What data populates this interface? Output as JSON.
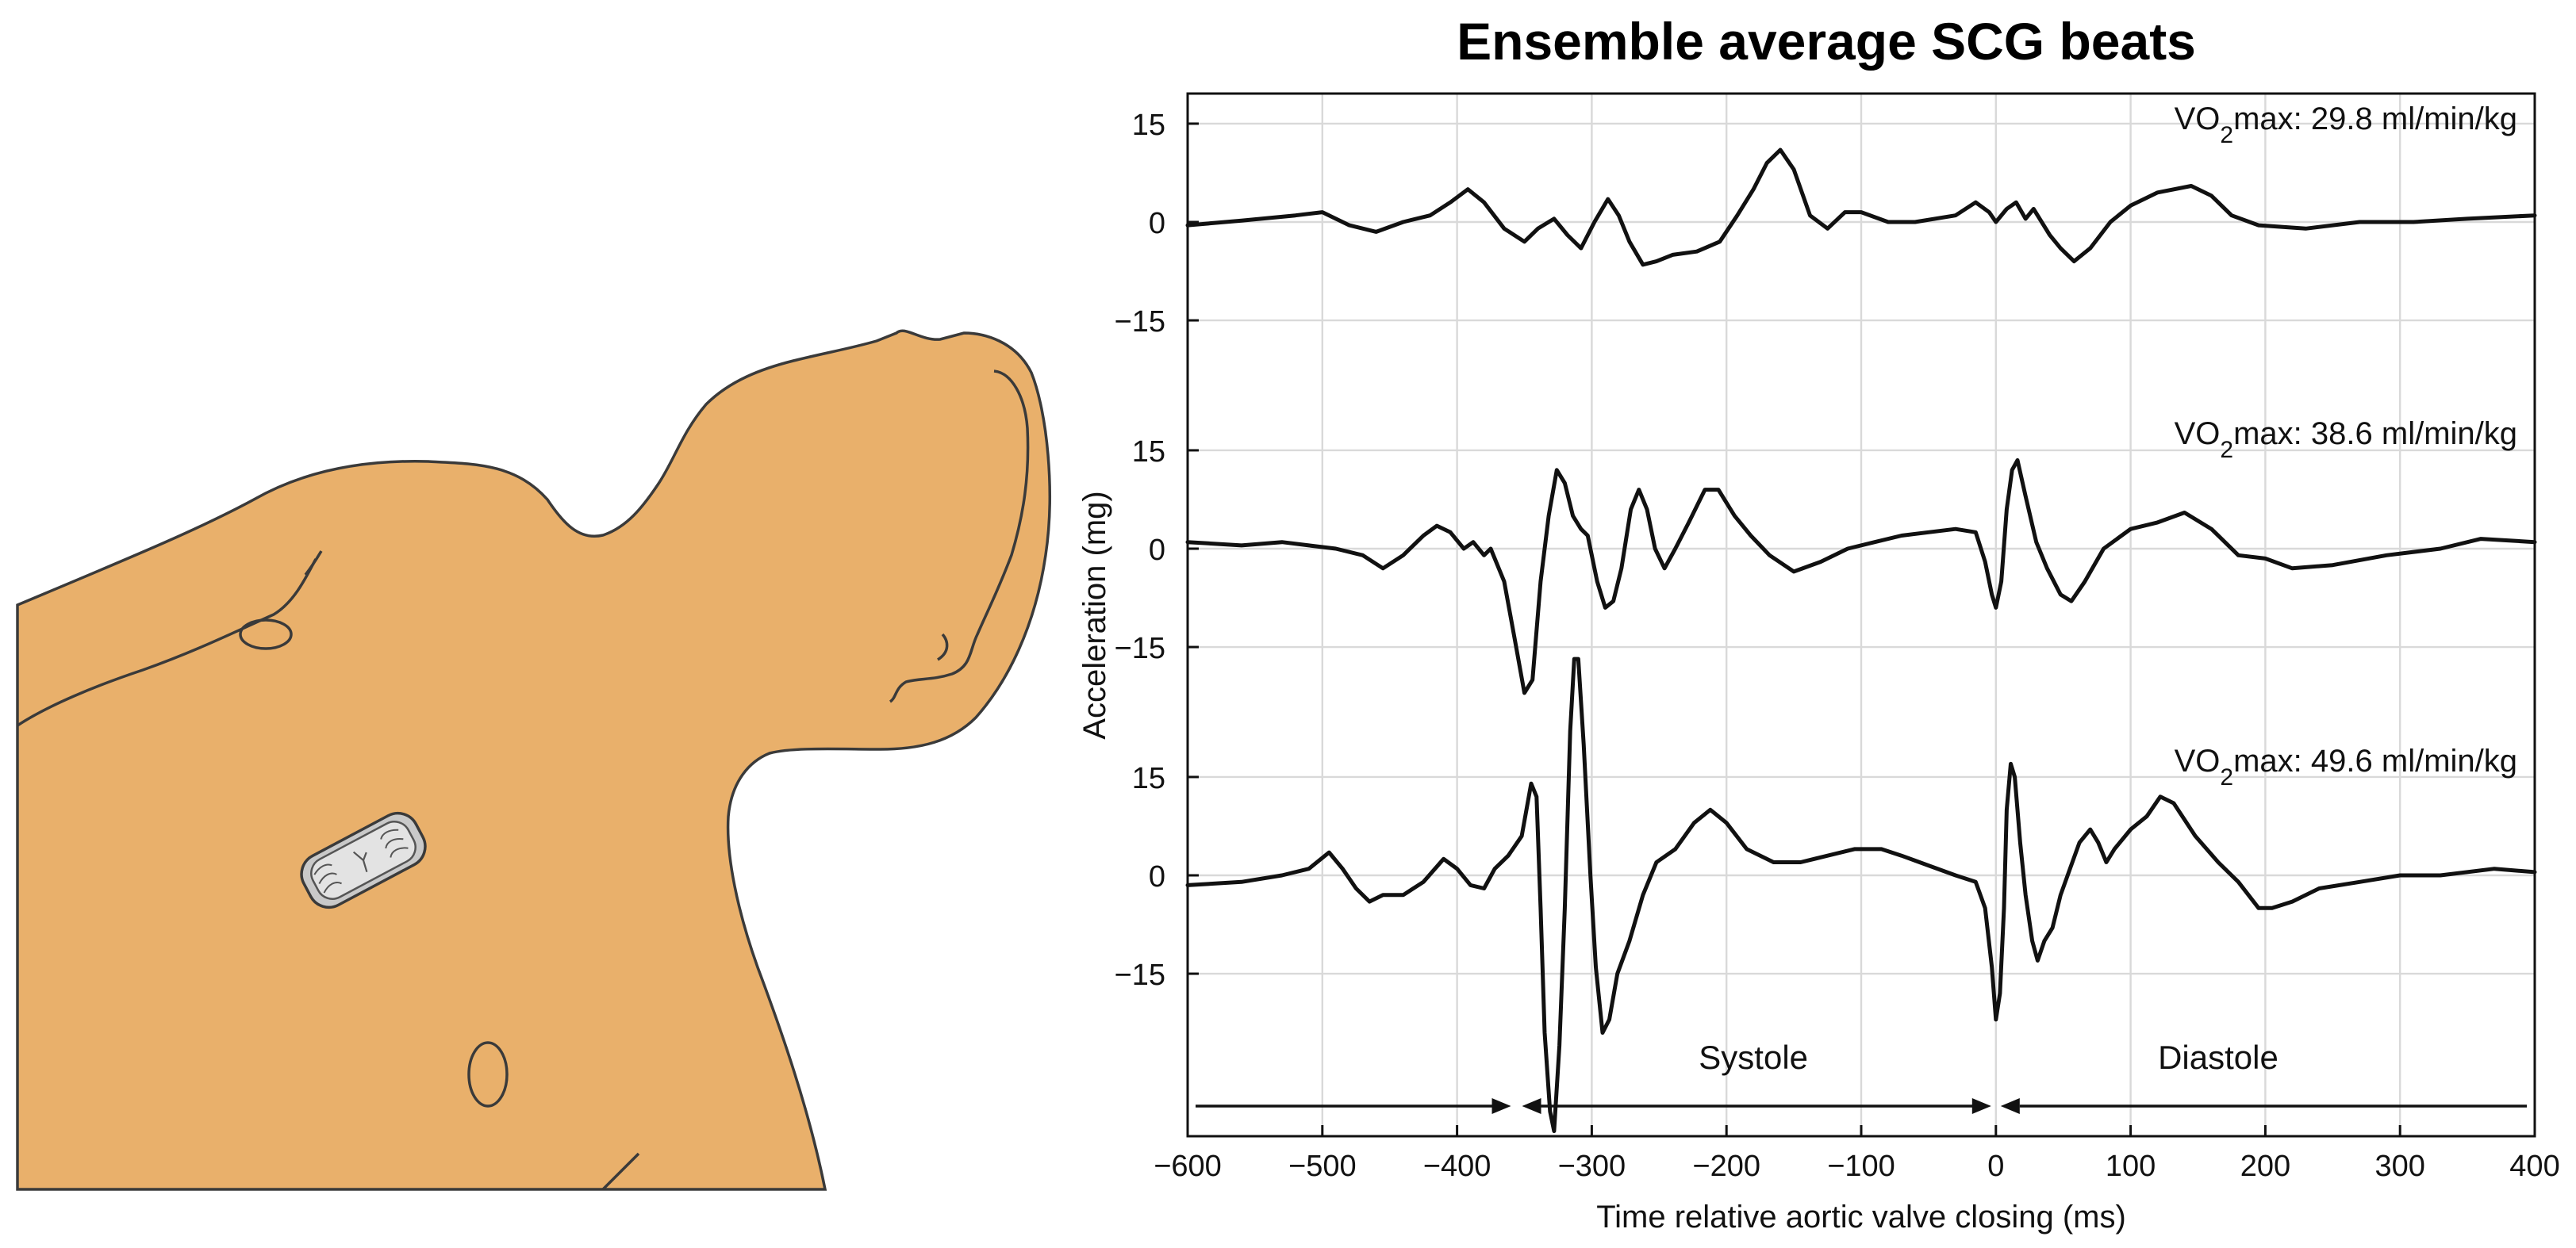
{
  "chart_data": {
    "type": "line",
    "title": "Ensemble average SCG beats",
    "xlabel": "Time relative aortic valve closing (ms)",
    "ylabel": "Acceleration (mg)",
    "xlim": [
      -600,
      400
    ],
    "x_ticks": [
      -600,
      -500,
      -400,
      -300,
      -200,
      -100,
      0,
      100,
      200,
      300,
      400
    ],
    "x_tick_labels": [
      "−600",
      "−500",
      "−400",
      "−300",
      "−200",
      "−100",
      "0",
      "100",
      "200",
      "300",
      "400"
    ],
    "y_tick_labels": [
      "15",
      "0",
      "−15"
    ],
    "grid": true,
    "panels": [
      {
        "annotation": {
          "prefix": "VO",
          "sub": "2",
          "suffix": "max: 29.8 ml/min/kg"
        },
        "ylim": [
          -20,
          20
        ],
        "y_ticks": [
          15,
          0,
          -15
        ],
        "points": [
          [
            -600,
            -0.5
          ],
          [
            -560,
            0.2
          ],
          [
            -520,
            1
          ],
          [
            -500,
            1.5
          ],
          [
            -480,
            -0.5
          ],
          [
            -460,
            -1.5
          ],
          [
            -440,
            0
          ],
          [
            -420,
            1
          ],
          [
            -405,
            3
          ],
          [
            -392,
            5
          ],
          [
            -380,
            3
          ],
          [
            -365,
            -1
          ],
          [
            -350,
            -3
          ],
          [
            -340,
            -1
          ],
          [
            -328,
            0.5
          ],
          [
            -318,
            -2
          ],
          [
            -308,
            -4
          ],
          [
            -298,
            0
          ],
          [
            -288,
            3.5
          ],
          [
            -280,
            1
          ],
          [
            -272,
            -3
          ],
          [
            -262,
            -6.5
          ],
          [
            -252,
            -6
          ],
          [
            -240,
            -5
          ],
          [
            -222,
            -4.5
          ],
          [
            -205,
            -3
          ],
          [
            -192,
            1
          ],
          [
            -180,
            5
          ],
          [
            -170,
            9
          ],
          [
            -160,
            11
          ],
          [
            -150,
            8
          ],
          [
            -138,
            1
          ],
          [
            -125,
            -1
          ],
          [
            -112,
            1.5
          ],
          [
            -100,
            1.5
          ],
          [
            -80,
            0
          ],
          [
            -60,
            0
          ],
          [
            -30,
            1
          ],
          [
            -15,
            3
          ],
          [
            -5,
            1.5
          ],
          [
            0,
            0
          ],
          [
            8,
            2
          ],
          [
            15,
            3
          ],
          [
            22,
            0.5
          ],
          [
            28,
            2
          ],
          [
            34,
            0
          ],
          [
            40,
            -2
          ],
          [
            48,
            -4
          ],
          [
            58,
            -6
          ],
          [
            70,
            -4
          ],
          [
            85,
            0
          ],
          [
            100,
            2.5
          ],
          [
            120,
            4.5
          ],
          [
            145,
            5.5
          ],
          [
            160,
            4
          ],
          [
            175,
            1
          ],
          [
            195,
            -0.5
          ],
          [
            230,
            -1
          ],
          [
            270,
            0
          ],
          [
            310,
            0
          ],
          [
            350,
            0.5
          ],
          [
            400,
            1
          ]
        ]
      },
      {
        "annotation": {
          "prefix": "VO",
          "sub": "2",
          "suffix": "max: 38.6 ml/min/kg"
        },
        "ylim": [
          -25,
          20
        ],
        "y_ticks": [
          15,
          0,
          -15
        ],
        "points": [
          [
            -600,
            1
          ],
          [
            -560,
            0.5
          ],
          [
            -530,
            1
          ],
          [
            -510,
            0.5
          ],
          [
            -490,
            0
          ],
          [
            -470,
            -1
          ],
          [
            -455,
            -3
          ],
          [
            -440,
            -1
          ],
          [
            -425,
            2
          ],
          [
            -415,
            3.5
          ],
          [
            -405,
            2.5
          ],
          [
            -395,
            0
          ],
          [
            -388,
            1
          ],
          [
            -380,
            -1
          ],
          [
            -375,
            0
          ],
          [
            -365,
            -5
          ],
          [
            -357,
            -14
          ],
          [
            -350,
            -22
          ],
          [
            -344,
            -20
          ],
          [
            -338,
            -5
          ],
          [
            -332,
            5
          ],
          [
            -326,
            12
          ],
          [
            -320,
            10
          ],
          [
            -314,
            5
          ],
          [
            -308,
            3
          ],
          [
            -303,
            2
          ],
          [
            -296,
            -5
          ],
          [
            -290,
            -9
          ],
          [
            -284,
            -8
          ],
          [
            -278,
            -3
          ],
          [
            -271,
            6
          ],
          [
            -265,
            9
          ],
          [
            -259,
            6
          ],
          [
            -253,
            0
          ],
          [
            -246,
            -3
          ],
          [
            -238,
            0
          ],
          [
            -228,
            4
          ],
          [
            -216,
            9
          ],
          [
            -206,
            9
          ],
          [
            -194,
            5
          ],
          [
            -182,
            2
          ],
          [
            -168,
            -1
          ],
          [
            -150,
            -3.5
          ],
          [
            -130,
            -2
          ],
          [
            -110,
            0
          ],
          [
            -90,
            1
          ],
          [
            -70,
            2
          ],
          [
            -50,
            2.5
          ],
          [
            -30,
            3
          ],
          [
            -15,
            2.5
          ],
          [
            -8,
            -2
          ],
          [
            -3,
            -7
          ],
          [
            0,
            -9
          ],
          [
            4,
            -5
          ],
          [
            8,
            6
          ],
          [
            12,
            12
          ],
          [
            16,
            13.5
          ],
          [
            22,
            8
          ],
          [
            30,
            1
          ],
          [
            38,
            -3
          ],
          [
            48,
            -7
          ],
          [
            56,
            -8
          ],
          [
            66,
            -5
          ],
          [
            80,
            0
          ],
          [
            100,
            3
          ],
          [
            120,
            4
          ],
          [
            140,
            5.5
          ],
          [
            160,
            3
          ],
          [
            180,
            -1
          ],
          [
            200,
            -1.5
          ],
          [
            220,
            -3
          ],
          [
            250,
            -2.5
          ],
          [
            290,
            -1
          ],
          [
            330,
            0
          ],
          [
            360,
            1.5
          ],
          [
            400,
            1
          ]
        ]
      },
      {
        "annotation": {
          "prefix": "VO",
          "sub": "2",
          "suffix": "max: 49.6 ml/min/kg"
        },
        "ylim": [
          -40,
          20
        ],
        "y_ticks": [
          15,
          0,
          -15
        ],
        "points": [
          [
            -600,
            -1.5
          ],
          [
            -560,
            -1
          ],
          [
            -530,
            0
          ],
          [
            -510,
            1
          ],
          [
            -495,
            3.5
          ],
          [
            -485,
            1
          ],
          [
            -475,
            -2
          ],
          [
            -465,
            -4
          ],
          [
            -455,
            -3
          ],
          [
            -440,
            -3
          ],
          [
            -425,
            -1
          ],
          [
            -410,
            2.5
          ],
          [
            -400,
            1
          ],
          [
            -390,
            -1.5
          ],
          [
            -380,
            -2
          ],
          [
            -372,
            1
          ],
          [
            -362,
            3
          ],
          [
            -352,
            6
          ],
          [
            -345,
            14
          ],
          [
            -341,
            12
          ],
          [
            -338,
            -5
          ],
          [
            -335,
            -24
          ],
          [
            -331,
            -36
          ],
          [
            -328,
            -39
          ],
          [
            -324,
            -26
          ],
          [
            -320,
            -5
          ],
          [
            -316,
            22
          ],
          [
            -313,
            33
          ],
          [
            -310,
            33
          ],
          [
            -306,
            20
          ],
          [
            -301,
            0
          ],
          [
            -297,
            -14
          ],
          [
            -292,
            -24
          ],
          [
            -287,
            -22
          ],
          [
            -281,
            -15
          ],
          [
            -272,
            -10
          ],
          [
            -262,
            -3
          ],
          [
            -252,
            2
          ],
          [
            -238,
            4
          ],
          [
            -224,
            8
          ],
          [
            -212,
            10
          ],
          [
            -200,
            8
          ],
          [
            -185,
            4
          ],
          [
            -165,
            2
          ],
          [
            -145,
            2
          ],
          [
            -125,
            3
          ],
          [
            -105,
            4
          ],
          [
            -85,
            4
          ],
          [
            -70,
            3
          ],
          [
            -50,
            1.5
          ],
          [
            -30,
            0
          ],
          [
            -15,
            -1
          ],
          [
            -8,
            -5
          ],
          [
            -3,
            -14
          ],
          [
            0,
            -22
          ],
          [
            3,
            -18
          ],
          [
            6,
            -5
          ],
          [
            8,
            10
          ],
          [
            11,
            17
          ],
          [
            14,
            15
          ],
          [
            18,
            5
          ],
          [
            22,
            -3
          ],
          [
            27,
            -10
          ],
          [
            31,
            -13
          ],
          [
            36,
            -10
          ],
          [
            42,
            -8
          ],
          [
            48,
            -3
          ],
          [
            55,
            1
          ],
          [
            62,
            5
          ],
          [
            70,
            7
          ],
          [
            76,
            5
          ],
          [
            82,
            2
          ],
          [
            88,
            4
          ],
          [
            100,
            7
          ],
          [
            112,
            9
          ],
          [
            122,
            12
          ],
          [
            132,
            11
          ],
          [
            148,
            6
          ],
          [
            165,
            2
          ],
          [
            180,
            -1
          ],
          [
            195,
            -5
          ],
          [
            205,
            -5
          ],
          [
            220,
            -4
          ],
          [
            240,
            -2
          ],
          [
            270,
            -1
          ],
          [
            300,
            0
          ],
          [
            330,
            0
          ],
          [
            370,
            1
          ],
          [
            400,
            0.5
          ]
        ]
      }
    ],
    "phases": {
      "systole": {
        "label": "Systole",
        "range": [
          -600,
          0
        ]
      },
      "diastole": {
        "label": "Diastole",
        "range": [
          0,
          400
        ]
      }
    }
  }
}
